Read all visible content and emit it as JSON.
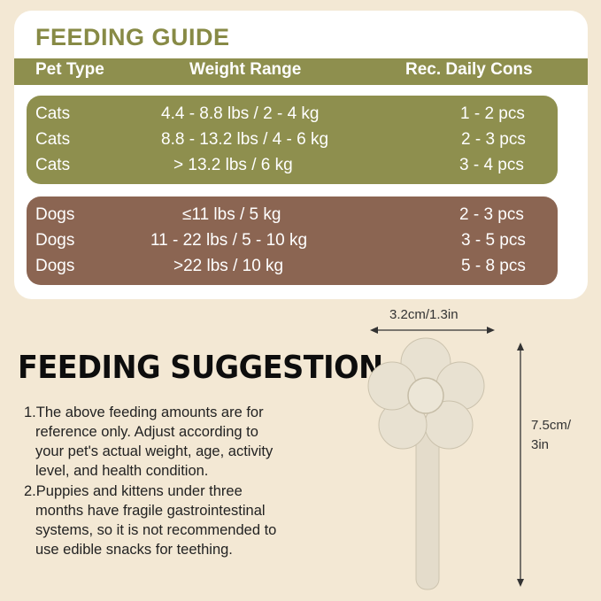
{
  "guide": {
    "title": "FEEDING GUIDE",
    "headers": {
      "pet_type": "Pet Type",
      "weight_range": "Weight Range",
      "daily": "Rec. Daily Cons"
    },
    "cats": [
      {
        "pet": "Cats",
        "weight": "4.4 - 8.8 lbs / 2 - 4 kg",
        "amount": "1 - 2 pcs"
      },
      {
        "pet": "Cats",
        "weight": "8.8 - 13.2 lbs / 4 - 6 kg",
        "amount": "2 - 3 pcs"
      },
      {
        "pet": "Cats",
        "weight": "> 13.2 lbs / 6 kg",
        "amount": "3 - 4 pcs"
      }
    ],
    "dogs": [
      {
        "pet": "Dogs",
        "weight": "≤11 lbs / 5 kg",
        "amount": "2 - 3 pcs"
      },
      {
        "pet": "Dogs",
        "weight": "11 - 22 lbs / 5 - 10 kg",
        "amount": "3 - 5 pcs"
      },
      {
        "pet": "Dogs",
        "weight": ">22 lbs / 10 kg",
        "amount": "5 - 8 pcs"
      }
    ]
  },
  "suggestion": {
    "title": "FEEDING SUGGESTION",
    "lines": [
      "1.The above feeding amounts are for",
      "reference only. Adjust according to",
      "your pet's actual weight, age, activity",
      "level, and health condition.",
      "2.Puppies and kittens under three",
      "months have fragile gastrointestinal",
      " systems, so it is not recommended to",
      "use edible snacks for teething."
    ]
  },
  "dimensions": {
    "width": "3.2cm/1.3in",
    "height_line1": "7.5cm/",
    "height_line2": "3in"
  },
  "colors": {
    "background": "#f3e8d4",
    "cat_green": "#8e8f4e",
    "dog_brown": "#8b6552",
    "title_green": "#878a45"
  }
}
